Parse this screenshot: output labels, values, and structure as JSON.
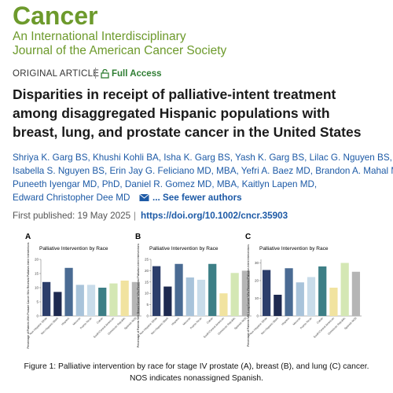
{
  "header": {
    "journal": "Cancer",
    "subtitle_lines": [
      "An International Interdisciplinary",
      "Journal of the American Cancer Society"
    ]
  },
  "article_type": "ORIGINAL ARTICLE",
  "access": "Full Access",
  "title_lines": [
    "Disparities in receipt of palliative-intent treatment",
    "among disaggregated Hispanic populations with",
    "breast, lung, and prostate cancer in the United States"
  ],
  "author_lines": [
    "Shriya K. Garg BS, Khushi Kohli BA, Isha K. Garg BS, Yash K. Garg BS, Lilac G. Nguyen BS,",
    "Isabella S. Nguyen BS, Erin Jay G. Feliciano MD, MBA, Yefri A. Baez MD, Brandon A. Mahal MD,",
    "Puneeth Iyengar MD, PhD, Daniel R. Gomez MD, MBA, Kaitlyn Lapen MD,",
    "Edward Christopher Dee MD"
  ],
  "fewer_authors": "... See fewer authors",
  "published": "First published: 19 May 2025",
  "doi": "https://doi.org/10.1002/cncr.35903",
  "caption_lines": [
    "Figure 1: Palliative intervention by race for stage IV prostate (A), breast (B), and lung (C) cancer.",
    "NOS indicates nonassigned Spanish."
  ],
  "chart_data": [
    {
      "type": "bar",
      "panel": "A",
      "title": "Palliative Intervention by Race",
      "ylabel": "Percentage of Patients With Prostate Cancer Who Received Palliative-Intent Interventions",
      "categories": [
        "Non-Hispanic White",
        "Non-Hispanic Black",
        "Hispanic",
        "Mexican",
        "Puerto Rican",
        "Cuban",
        "South/Central American",
        "Dominican Republic",
        "Spanish NOS"
      ],
      "values": [
        12,
        8.5,
        17,
        11,
        11,
        10,
        11.5,
        12.5,
        12
      ],
      "colors": [
        "#2c3e6b",
        "#1e2a50",
        "#4a6b93",
        "#a8c3da",
        "#c9dcea",
        "#3d7f86",
        "#d4e7b4",
        "#f1e3a0",
        "#b5b5b5"
      ],
      "ylim": [
        0,
        20
      ],
      "yticks": [
        0,
        5,
        10,
        15,
        20
      ]
    },
    {
      "type": "bar",
      "panel": "B",
      "title": "Palliative Intervention by Race",
      "ylabel": "Percentage of Patients With Breast Cancer Who Received Palliative-Intent Interventions",
      "categories": [
        "Non-Hispanic White",
        "Non-Hispanic Black",
        "Hispanic",
        "Mexican",
        "Puerto Rican",
        "Cuban",
        "South/Central American",
        "Dominican Republic",
        "Spanish NOS"
      ],
      "values": [
        22,
        13,
        23,
        17,
        16,
        23,
        10,
        19,
        20
      ],
      "colors": [
        "#2c3e6b",
        "#1e2a50",
        "#4a6b93",
        "#a8c3da",
        "#c9dcea",
        "#3d7f86",
        "#f1e3a0",
        "#d4e7b4",
        "#b5b5b5"
      ],
      "ylim": [
        0,
        25
      ],
      "yticks": [
        0,
        5,
        10,
        15,
        20,
        25
      ]
    },
    {
      "type": "bar",
      "panel": "C",
      "title": "Palliative Intervention by Race",
      "ylabel": "Percentage of Patients With Lung Cancer Who Received Palliative-Intent Interventions",
      "categories": [
        "Non-Hispanic White",
        "Non-Hispanic Black",
        "Hispanic",
        "Mexican",
        "Puerto Rican",
        "Cuban",
        "South/Central American",
        "Dominican Republic",
        "Spanish NOS"
      ],
      "values": [
        26,
        12,
        27,
        19,
        22,
        28,
        16,
        30,
        25
      ],
      "colors": [
        "#2c3e6b",
        "#1e2a50",
        "#4a6b93",
        "#a8c3da",
        "#c9dcea",
        "#3d7f86",
        "#f1e3a0",
        "#d4e7b4",
        "#b5b5b5"
      ],
      "ylim": [
        0,
        32
      ],
      "yticks": [
        0,
        10,
        20,
        30
      ]
    }
  ]
}
